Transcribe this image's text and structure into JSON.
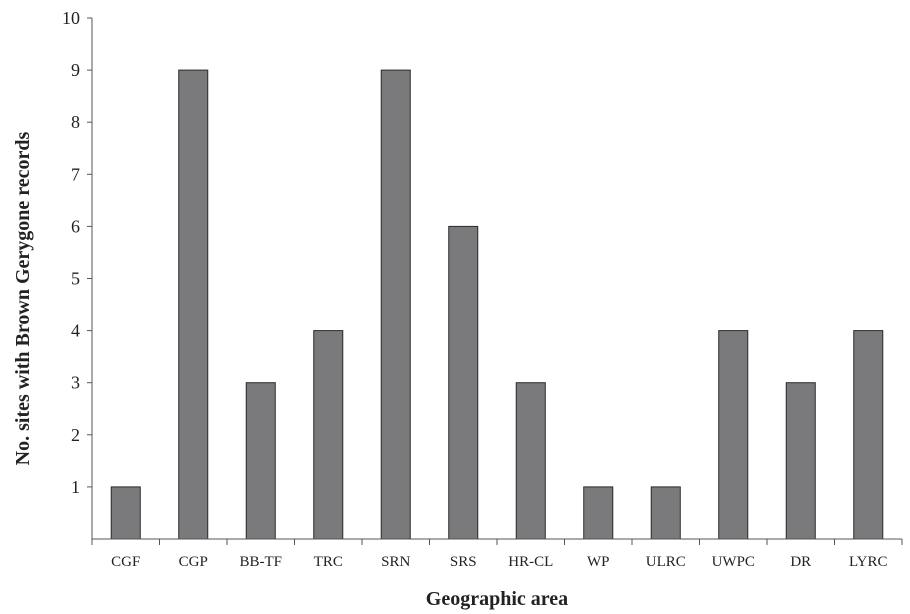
{
  "chart_data": {
    "type": "bar",
    "categories": [
      "CGF",
      "CGP",
      "BB-TF",
      "TRC",
      "SRN",
      "SRS",
      "HR-CL",
      "WP",
      "ULRC",
      "UWPC",
      "DR",
      "LYRC"
    ],
    "values": [
      1,
      9,
      3,
      4,
      9,
      6,
      3,
      1,
      1,
      4,
      3,
      4
    ],
    "xlabel": "Geographic area",
    "ylabel": "No. sites with Brown Gerygone records",
    "ylim": [
      0,
      10
    ],
    "yticks": [
      1,
      2,
      3,
      4,
      5,
      6,
      7,
      8,
      9,
      10
    ],
    "grid": false,
    "bar_color": "#7a7a7c"
  }
}
